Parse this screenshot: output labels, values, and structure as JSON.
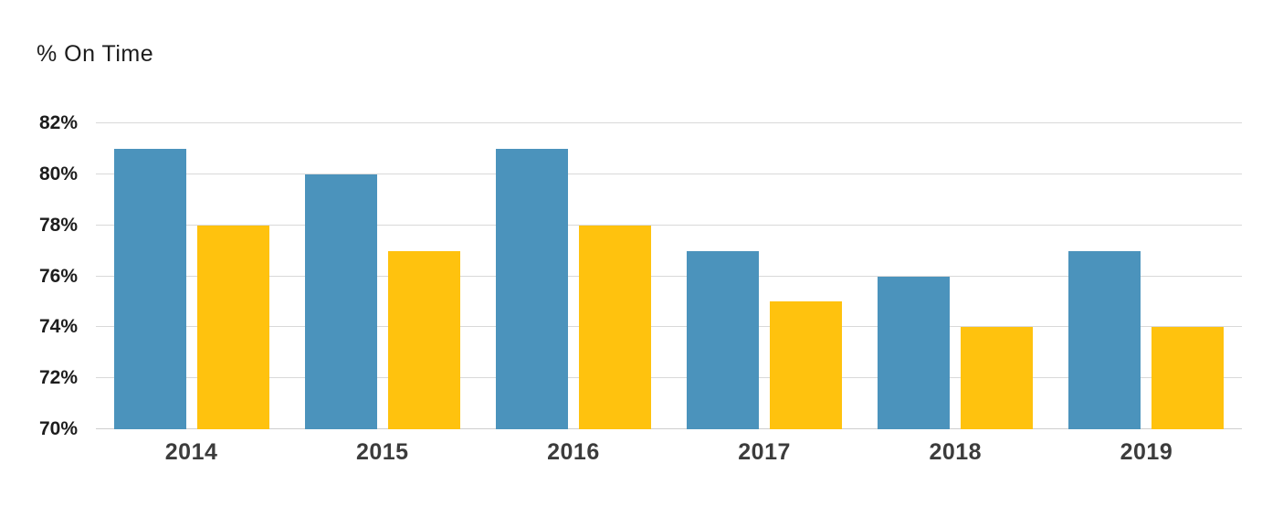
{
  "chart_data": {
    "type": "bar",
    "title": "% On Time",
    "categories": [
      "2014",
      "2015",
      "2016",
      "2017",
      "2018",
      "2019"
    ],
    "series": [
      {
        "name": "blue",
        "color": "#4B93BC",
        "values": [
          81,
          80,
          81,
          77,
          76,
          77
        ]
      },
      {
        "name": "yellow",
        "color": "#FFC20E",
        "values": [
          78,
          77,
          78,
          75,
          74,
          74
        ]
      }
    ],
    "xlabel": "",
    "ylabel": "",
    "ylim": [
      70,
      82
    ],
    "ytick_step": 2,
    "ytick_labels": [
      "70%",
      "72%",
      "74%",
      "76%",
      "78%",
      "80%",
      "82%"
    ],
    "grid": true,
    "legend_position": "none",
    "colors": {
      "background": "#ffffff",
      "gridline": "#d9d9d9",
      "title_text": "#1c1c1c",
      "y_tick_text": "#1d1d1d",
      "x_tick_text": "#3c3c3c"
    }
  }
}
